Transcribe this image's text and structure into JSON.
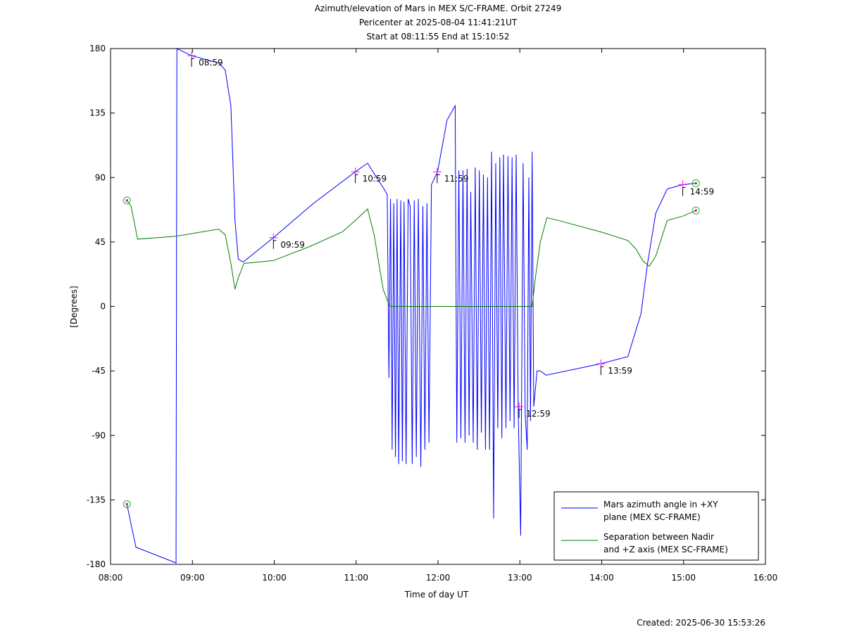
{
  "chart_data": {
    "type": "line",
    "title": "Azimuth/elevation of Mars in MEX S/C-FRAME.  Orbit 27249",
    "subtitle": [
      "Pericenter at 2025-08-04 11:41:21UT",
      "Start at 08:11:55 End at 15:10:52"
    ],
    "xlabel": "Time of day UT",
    "ylabel": "[Degrees]",
    "footer": "Created: 2025-06-30 15:53:26",
    "xlim": [
      8,
      16
    ],
    "xticks": [
      {
        "value": 8,
        "label": "08:00"
      },
      {
        "value": 9,
        "label": "09:00"
      },
      {
        "value": 10,
        "label": "10:00"
      },
      {
        "value": 11,
        "label": "11:00"
      },
      {
        "value": 12,
        "label": "12:00"
      },
      {
        "value": 13,
        "label": "13:00"
      },
      {
        "value": 14,
        "label": "14:00"
      },
      {
        "value": 15,
        "label": "15:00"
      },
      {
        "value": 16,
        "label": "16:00"
      }
    ],
    "ylim": [
      -180,
      180
    ],
    "yticks": [
      -180,
      -135,
      -90,
      -45,
      0,
      45,
      90,
      135,
      180
    ],
    "grid": false,
    "legend": "lower right",
    "marker_color": "#ff00ff",
    "endpoint_circle_color": "#00cc00",
    "series": [
      {
        "name": "Mars azimuth angle in +XY\nplane (MEX SC-FRAME)",
        "color": "#0000ff",
        "x": [
          8.2,
          8.31,
          8.8,
          8.81,
          8.99,
          9.32,
          9.4,
          9.47,
          9.52,
          9.56,
          9.62,
          9.99,
          10.48,
          10.99,
          11.14,
          11.25,
          11.34,
          11.38,
          11.4,
          11.42,
          11.44,
          11.46,
          11.48,
          11.5,
          11.52,
          11.545,
          11.565,
          11.585,
          11.61,
          11.635,
          11.66,
          11.685,
          11.71,
          11.735,
          11.76,
          11.79,
          11.815,
          11.84,
          11.865,
          11.89,
          11.92,
          11.995,
          12.11,
          12.21,
          12.23,
          12.255,
          12.28,
          12.305,
          12.33,
          12.355,
          12.38,
          12.4,
          12.43,
          12.455,
          12.48,
          12.505,
          12.53,
          12.555,
          12.58,
          12.605,
          12.63,
          12.655,
          12.68,
          12.705,
          12.73,
          12.755,
          12.78,
          12.8,
          12.83,
          12.855,
          12.88,
          12.905,
          12.93,
          12.955,
          12.98,
          13.01,
          13.04,
          13.065,
          13.09,
          13.11,
          13.13,
          13.15,
          13.17,
          13.21,
          13.25,
          13.32,
          13.99,
          14.32,
          14.4,
          14.48,
          14.56,
          14.66,
          14.8,
          14.99,
          15.15
        ],
        "values": [
          -138,
          -168,
          -179,
          180,
          175,
          170,
          165,
          140,
          60,
          33,
          31,
          48,
          72,
          94,
          100,
          90,
          82,
          78,
          -50,
          75,
          -100,
          72,
          -105,
          75,
          -110,
          74,
          -108,
          73,
          -110,
          75,
          70,
          -110,
          74,
          -105,
          75,
          -112,
          70,
          -100,
          72,
          -95,
          85,
          94,
          130,
          140,
          -95,
          95,
          -92,
          95,
          -95,
          96,
          -90,
          80,
          -95,
          97,
          -100,
          95,
          -88,
          92,
          -100,
          90,
          -100,
          108,
          -148,
          100,
          -85,
          104,
          -92,
          106,
          -85,
          105,
          -80,
          104,
          -85,
          106,
          -72,
          -160,
          100,
          -75,
          -100,
          90,
          -80,
          108,
          -70,
          -45,
          -45,
          -48,
          -40,
          -35,
          -20,
          -5,
          30,
          65,
          82,
          85,
          86
        ]
      },
      {
        "name": "Separation between Nadir\nand +Z axis (MEX SC-FRAME)",
        "color": "#008000",
        "x": [
          8.2,
          8.25,
          8.33,
          8.8,
          9.32,
          9.4,
          9.47,
          9.52,
          9.56,
          9.63,
          9.99,
          10.44,
          10.83,
          10.99,
          11.14,
          11.22,
          11.33,
          11.41,
          13.15,
          13.19,
          13.25,
          13.33,
          13.47,
          13.99,
          14.32,
          14.42,
          14.5,
          14.58,
          14.66,
          14.8,
          14.99,
          15.15
        ],
        "values": [
          74,
          70,
          47,
          49,
          54,
          50,
          30,
          12,
          20,
          30,
          32,
          42,
          52,
          60,
          68,
          50,
          12,
          0,
          0,
          20,
          45,
          62,
          60,
          52,
          46,
          40,
          32,
          28,
          35,
          60,
          63,
          67
        ]
      }
    ],
    "annotations": [
      {
        "text": "08:59",
        "x": 8.99,
        "y": 175
      },
      {
        "text": "09:59",
        "x": 9.99,
        "y": 48
      },
      {
        "text": "10:59",
        "x": 10.99,
        "y": 94
      },
      {
        "text": "11:59",
        "x": 11.99,
        "y": 94
      },
      {
        "text": "12:59",
        "x": 12.99,
        "y": -70
      },
      {
        "text": "13:59",
        "x": 13.99,
        "y": -40
      },
      {
        "text": "14:59",
        "x": 14.99,
        "y": 85
      }
    ]
  }
}
